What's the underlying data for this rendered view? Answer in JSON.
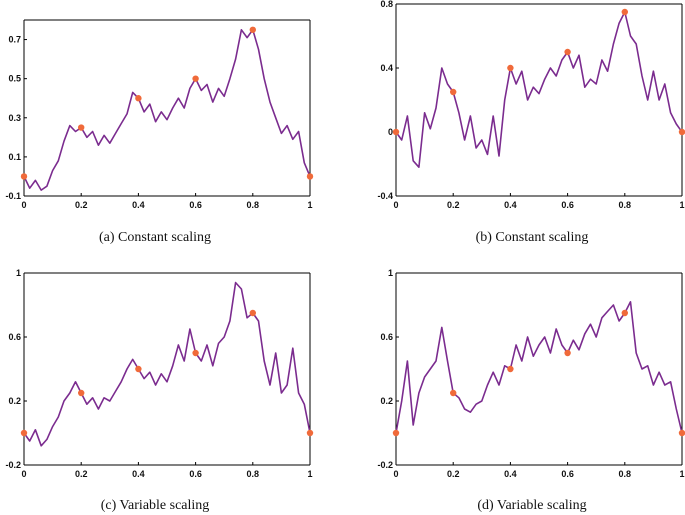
{
  "figure": {
    "colors": {
      "line": "#7b2c8f",
      "marker": "#f06a3a",
      "axis": "#000000"
    }
  },
  "chart_data": [
    {
      "type": "line",
      "caption": "(a)  Constant scaling",
      "xlim": [
        0,
        1
      ],
      "ylim": [
        -0.1,
        0.8
      ],
      "xticks": [
        0,
        0.2,
        0.4,
        0.6,
        0.8,
        1
      ],
      "xtick_labels": [
        "0",
        "0.2",
        "0.4",
        "0.6",
        "0.8",
        "1"
      ],
      "yticks": [
        -0.1,
        0.1,
        0.3,
        0.5,
        0.7
      ],
      "ytick_labels": [
        "-0.1",
        "0.1",
        "0.3",
        "0.5",
        "0.7"
      ],
      "interpolation_points": {
        "x": [
          0,
          0.2,
          0.4,
          0.6,
          0.8,
          1
        ],
        "y": [
          0,
          0.25,
          0.4,
          0.5,
          0.75,
          0
        ]
      },
      "series": [
        {
          "x": [
            0,
            0.02,
            0.04,
            0.06,
            0.08,
            0.1,
            0.12,
            0.14,
            0.16,
            0.18,
            0.2,
            0.22,
            0.24,
            0.26,
            0.28,
            0.3,
            0.32,
            0.34,
            0.36,
            0.38,
            0.4,
            0.42,
            0.44,
            0.46,
            0.48,
            0.5,
            0.52,
            0.54,
            0.56,
            0.58,
            0.6,
            0.62,
            0.64,
            0.66,
            0.68,
            0.7,
            0.72,
            0.74,
            0.76,
            0.78,
            0.8,
            0.82,
            0.84,
            0.86,
            0.88,
            0.9,
            0.92,
            0.94,
            0.96,
            0.98,
            1
          ],
          "y": [
            0,
            -0.06,
            -0.02,
            -0.07,
            -0.05,
            0.03,
            0.08,
            0.18,
            0.26,
            0.23,
            0.25,
            0.2,
            0.23,
            0.16,
            0.21,
            0.17,
            0.22,
            0.27,
            0.32,
            0.43,
            0.4,
            0.33,
            0.37,
            0.28,
            0.33,
            0.29,
            0.35,
            0.4,
            0.35,
            0.45,
            0.5,
            0.44,
            0.47,
            0.38,
            0.45,
            0.41,
            0.5,
            0.6,
            0.75,
            0.71,
            0.75,
            0.65,
            0.5,
            0.38,
            0.3,
            0.22,
            0.26,
            0.19,
            0.23,
            0.07,
            0
          ]
        }
      ]
    },
    {
      "type": "line",
      "caption": "(b)  Constant scaling",
      "xlim": [
        0,
        1
      ],
      "ylim": [
        -0.4,
        0.8
      ],
      "xticks": [
        0,
        0.2,
        0.4,
        0.6,
        0.8,
        1
      ],
      "xtick_labels": [
        "0",
        "0.2",
        "0.4",
        "0.6",
        "0.8",
        "1"
      ],
      "yticks": [
        -0.4,
        0,
        0.4,
        0.8
      ],
      "ytick_labels": [
        "-0.4",
        "0",
        "0.4",
        "0.8"
      ],
      "interpolation_points": {
        "x": [
          0,
          0.2,
          0.4,
          0.6,
          0.8,
          1
        ],
        "y": [
          0,
          0.25,
          0.4,
          0.5,
          0.75,
          0
        ]
      },
      "series": [
        {
          "x": [
            0,
            0.02,
            0.04,
            0.06,
            0.08,
            0.1,
            0.12,
            0.14,
            0.16,
            0.18,
            0.2,
            0.22,
            0.24,
            0.26,
            0.28,
            0.3,
            0.32,
            0.34,
            0.36,
            0.38,
            0.4,
            0.42,
            0.44,
            0.46,
            0.48,
            0.5,
            0.52,
            0.54,
            0.56,
            0.58,
            0.6,
            0.62,
            0.64,
            0.66,
            0.68,
            0.7,
            0.72,
            0.74,
            0.76,
            0.78,
            0.8,
            0.82,
            0.84,
            0.86,
            0.88,
            0.9,
            0.92,
            0.94,
            0.96,
            0.98,
            1
          ],
          "y": [
            0,
            -0.05,
            0.1,
            -0.18,
            -0.22,
            0.12,
            0.02,
            0.15,
            0.4,
            0.3,
            0.25,
            0.12,
            -0.05,
            0.1,
            -0.1,
            -0.05,
            -0.14,
            0.1,
            -0.15,
            0.2,
            0.4,
            0.3,
            0.38,
            0.2,
            0.28,
            0.24,
            0.33,
            0.4,
            0.35,
            0.45,
            0.5,
            0.4,
            0.48,
            0.28,
            0.33,
            0.3,
            0.45,
            0.38,
            0.55,
            0.68,
            0.75,
            0.6,
            0.55,
            0.35,
            0.2,
            0.38,
            0.2,
            0.3,
            0.12,
            0.05,
            0
          ]
        }
      ]
    },
    {
      "type": "line",
      "caption": "(c)  Variable scaling",
      "xlim": [
        0,
        1
      ],
      "ylim": [
        -0.2,
        1
      ],
      "xticks": [
        0,
        0.2,
        0.4,
        0.6,
        0.8,
        1
      ],
      "xtick_labels": [
        "0",
        "0.2",
        "0.4",
        "0.6",
        "0.8",
        "1"
      ],
      "yticks": [
        -0.2,
        0.2,
        0.6,
        1
      ],
      "ytick_labels": [
        "-0.2",
        "0.2",
        "0.6",
        "1"
      ],
      "interpolation_points": {
        "x": [
          0,
          0.2,
          0.4,
          0.6,
          0.8,
          1
        ],
        "y": [
          0,
          0.25,
          0.4,
          0.5,
          0.75,
          0
        ]
      },
      "series": [
        {
          "x": [
            0,
            0.02,
            0.04,
            0.06,
            0.08,
            0.1,
            0.12,
            0.14,
            0.16,
            0.18,
            0.2,
            0.22,
            0.24,
            0.26,
            0.28,
            0.3,
            0.32,
            0.34,
            0.36,
            0.38,
            0.4,
            0.42,
            0.44,
            0.46,
            0.48,
            0.5,
            0.52,
            0.54,
            0.56,
            0.58,
            0.6,
            0.62,
            0.64,
            0.66,
            0.68,
            0.7,
            0.72,
            0.74,
            0.76,
            0.78,
            0.8,
            0.82,
            0.84,
            0.86,
            0.88,
            0.9,
            0.92,
            0.94,
            0.96,
            0.98,
            1
          ],
          "y": [
            0,
            -0.05,
            0.02,
            -0.08,
            -0.04,
            0.04,
            0.1,
            0.2,
            0.25,
            0.32,
            0.25,
            0.18,
            0.22,
            0.15,
            0.22,
            0.2,
            0.26,
            0.32,
            0.4,
            0.46,
            0.4,
            0.34,
            0.38,
            0.3,
            0.37,
            0.32,
            0.42,
            0.55,
            0.45,
            0.65,
            0.5,
            0.45,
            0.55,
            0.42,
            0.56,
            0.6,
            0.7,
            0.94,
            0.9,
            0.72,
            0.75,
            0.7,
            0.45,
            0.3,
            0.5,
            0.25,
            0.3,
            0.53,
            0.25,
            0.18,
            0
          ]
        }
      ]
    },
    {
      "type": "line",
      "caption": "(d)  Variable scaling",
      "xlim": [
        0,
        1
      ],
      "ylim": [
        -0.2,
        1
      ],
      "xticks": [
        0,
        0.2,
        0.4,
        0.6,
        0.8,
        1
      ],
      "xtick_labels": [
        "0",
        "0.2",
        "0.4",
        "0.6",
        "0.8",
        "1"
      ],
      "yticks": [
        -0.2,
        0.2,
        0.6,
        1
      ],
      "ytick_labels": [
        "-0.2",
        "0.2",
        "0.6",
        "1"
      ],
      "interpolation_points": {
        "x": [
          0,
          0.2,
          0.4,
          0.6,
          0.8,
          1
        ],
        "y": [
          0,
          0.25,
          0.4,
          0.5,
          0.75,
          0
        ]
      },
      "series": [
        {
          "x": [
            0,
            0.02,
            0.04,
            0.06,
            0.08,
            0.1,
            0.12,
            0.14,
            0.16,
            0.18,
            0.2,
            0.22,
            0.24,
            0.26,
            0.28,
            0.3,
            0.32,
            0.34,
            0.36,
            0.38,
            0.4,
            0.42,
            0.44,
            0.46,
            0.48,
            0.5,
            0.52,
            0.54,
            0.56,
            0.58,
            0.6,
            0.62,
            0.64,
            0.66,
            0.68,
            0.7,
            0.72,
            0.74,
            0.76,
            0.78,
            0.8,
            0.82,
            0.84,
            0.86,
            0.88,
            0.9,
            0.92,
            0.94,
            0.96,
            0.98,
            1
          ],
          "y": [
            0,
            0.2,
            0.45,
            0.05,
            0.25,
            0.35,
            0.4,
            0.45,
            0.66,
            0.45,
            0.25,
            0.22,
            0.15,
            0.13,
            0.18,
            0.2,
            0.3,
            0.38,
            0.3,
            0.42,
            0.4,
            0.55,
            0.45,
            0.6,
            0.48,
            0.55,
            0.6,
            0.5,
            0.65,
            0.55,
            0.5,
            0.58,
            0.52,
            0.62,
            0.68,
            0.6,
            0.72,
            0.76,
            0.8,
            0.7,
            0.75,
            0.82,
            0.5,
            0.4,
            0.42,
            0.3,
            0.38,
            0.3,
            0.32,
            0.15,
            0
          ]
        }
      ]
    }
  ]
}
